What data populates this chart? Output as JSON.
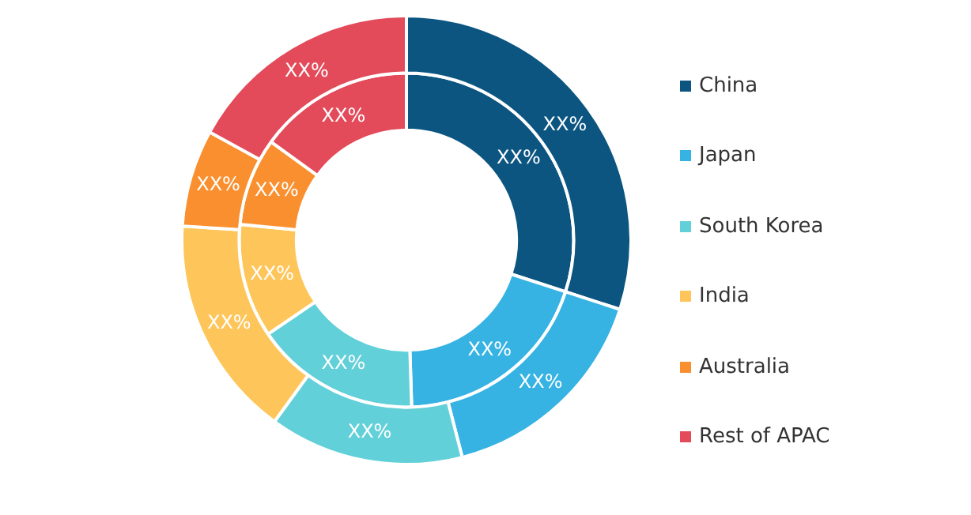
{
  "chart_data": {
    "type": "donut",
    "categories": [
      "China",
      "Japan",
      "South Korea",
      "India",
      "Australia",
      "Rest of APAC"
    ],
    "colors": [
      "#0b5580",
      "#36b3e3",
      "#62d0d8",
      "#fec65a",
      "#f98f2e",
      "#e34a5a"
    ],
    "series": [
      {
        "values": [
          30,
          16,
          14,
          16,
          7,
          17
        ],
        "value_labels": [
          "XX%",
          "XX%",
          "XX%",
          "XX%",
          "XX%",
          "XX%"
        ]
      },
      {
        "values": [
          30,
          19.5,
          16,
          11,
          8.5,
          15
        ],
        "value_labels": [
          "XX%",
          "XX%",
          "XX%",
          "XX%",
          "XX%",
          "XX%"
        ]
      }
    ],
    "legend": "right"
  }
}
